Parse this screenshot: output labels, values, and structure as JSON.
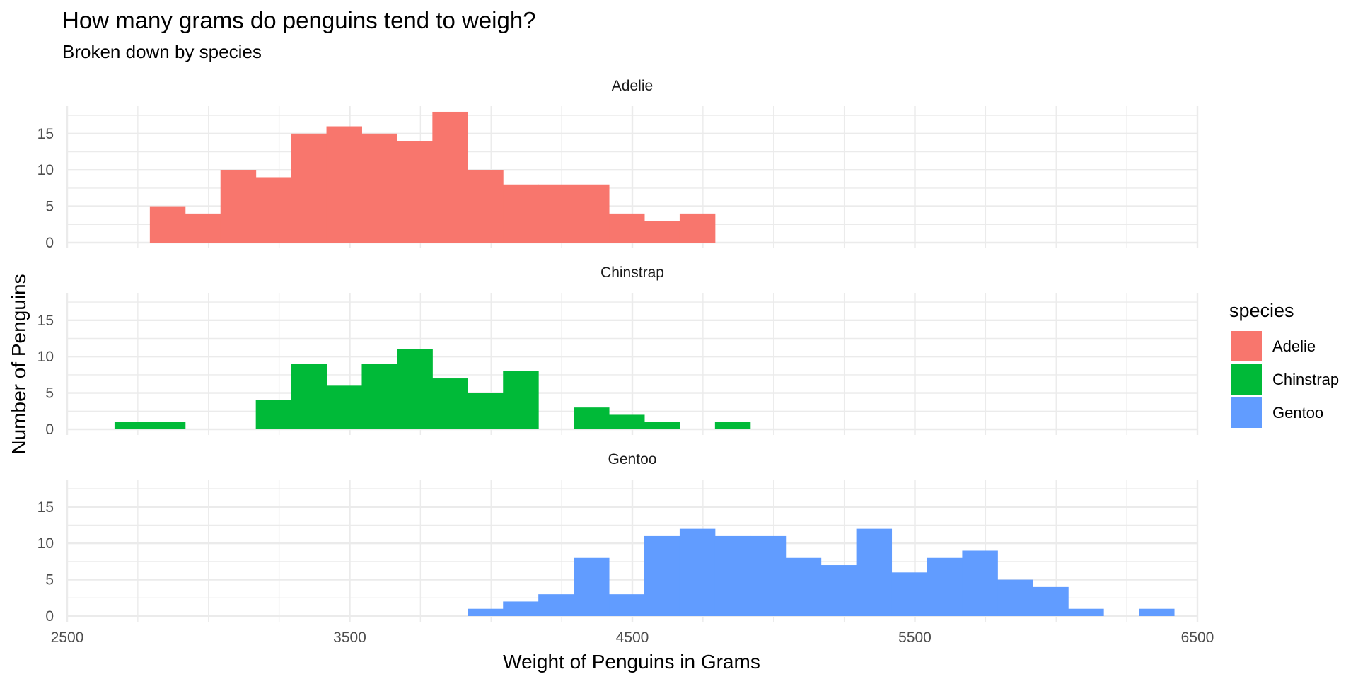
{
  "chart_data": {
    "type": "bar",
    "subtype": "faceted-histogram",
    "title": "How many grams do penguins tend to weigh?",
    "subtitle": "Broken down by species",
    "xlabel": "Weight of Penguins in Grams",
    "ylabel": "Number of Penguins",
    "xlim": [
      2500,
      6500
    ],
    "ylim": [
      0,
      18
    ],
    "x_ticks": [
      2500,
      3500,
      4500,
      5500,
      6500
    ],
    "y_ticks": [
      0,
      5,
      10,
      15
    ],
    "bin_width": 125,
    "grid": true,
    "legend": {
      "title": "species",
      "position": "right",
      "items": [
        {
          "label": "Adelie",
          "color": "#F8766D"
        },
        {
          "label": "Chinstrap",
          "color": "#00BA38"
        },
        {
          "label": "Gentoo",
          "color": "#619CFF"
        }
      ]
    },
    "series": [
      {
        "name": "Adelie",
        "color": "#F8766D",
        "bin_starts": [
          2792.5,
          2917.5,
          3042.5,
          3167.5,
          3292.5,
          3417.5,
          3542.5,
          3667.5,
          3792.5,
          3917.5,
          4042.5,
          4167.5,
          4292.5,
          4417.5,
          4542.5,
          4667.5
        ],
        "values": [
          5,
          4,
          10,
          9,
          15,
          16,
          15,
          14,
          18,
          10,
          8,
          8,
          8,
          4,
          3,
          4
        ]
      },
      {
        "name": "Chinstrap",
        "color": "#00BA38",
        "bin_starts": [
          2667.5,
          2792.5,
          3167.5,
          3292.5,
          3417.5,
          3542.5,
          3667.5,
          3792.5,
          3917.5,
          4042.5,
          4292.5,
          4417.5,
          4542.5,
          4792.5
        ],
        "values": [
          1,
          1,
          4,
          9,
          6,
          9,
          11,
          7,
          5,
          8,
          3,
          2,
          1,
          1
        ]
      },
      {
        "name": "Gentoo",
        "color": "#619CFF",
        "bin_starts": [
          3917.5,
          4042.5,
          4167.5,
          4292.5,
          4417.5,
          4542.5,
          4667.5,
          4792.5,
          4917.5,
          5042.5,
          5167.5,
          5292.5,
          5417.5,
          5542.5,
          5667.5,
          5792.5,
          5917.5,
          6042.5,
          6292.5
        ],
        "values": [
          1,
          2,
          3,
          8,
          3,
          11,
          12,
          11,
          11,
          8,
          7,
          12,
          6,
          8,
          9,
          5,
          4,
          1,
          1
        ]
      }
    ]
  }
}
